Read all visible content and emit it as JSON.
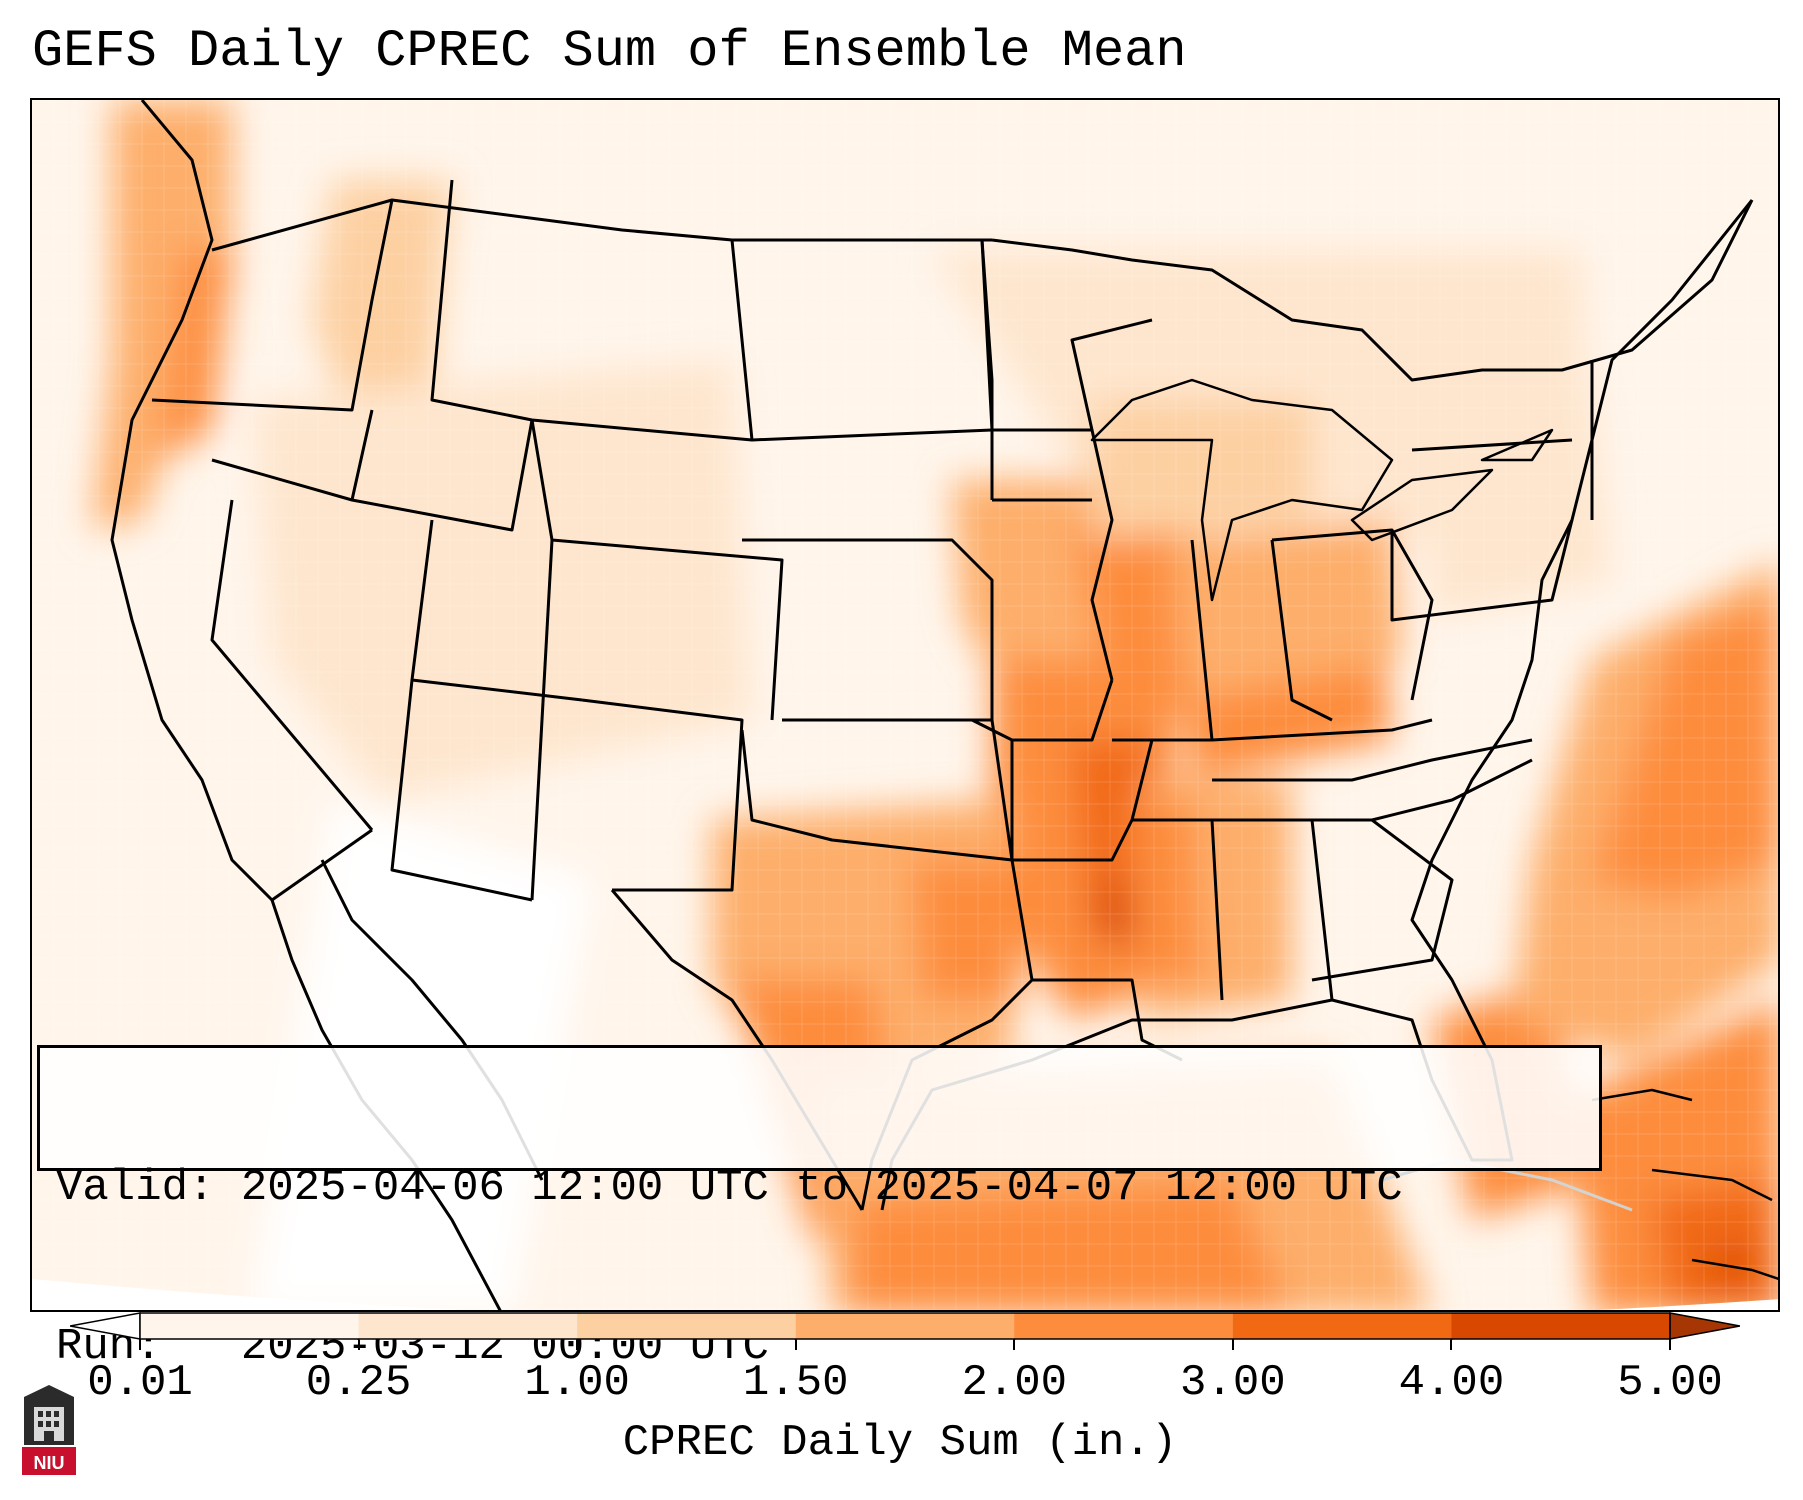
{
  "title": "GEFS Daily CPREC Sum of Ensemble Mean",
  "info": {
    "valid_label": "Valid:",
    "valid_value": "2025-04-06 12:00 UTC to 2025-04-07 12:00 UTC",
    "run_label": "Run:",
    "run_value": "2025-03-12 00:00 UTC"
  },
  "colorbar": {
    "label": "CPREC Daily Sum (in.)",
    "ticks": [
      "0.01",
      "0.25",
      "1.00",
      "1.50",
      "2.00",
      "3.00",
      "4.00",
      "5.00"
    ],
    "colors": [
      "#fff5eb",
      "#fee6ce",
      "#fdd0a2",
      "#fdae6b",
      "#fd8d3c",
      "#f16913",
      "#d94801",
      "#a63603"
    ],
    "extend": "both"
  },
  "logo": {
    "text": "NIU",
    "icon": "university-tower-icon"
  },
  "map": {
    "region": "Continental United States",
    "field": "CPREC daily sum shading",
    "heavy_rain_regions": [
      "Lower Mississippi Valley",
      "Ohio Valley",
      "Gulf Coast",
      "Western Atlantic"
    ]
  }
}
